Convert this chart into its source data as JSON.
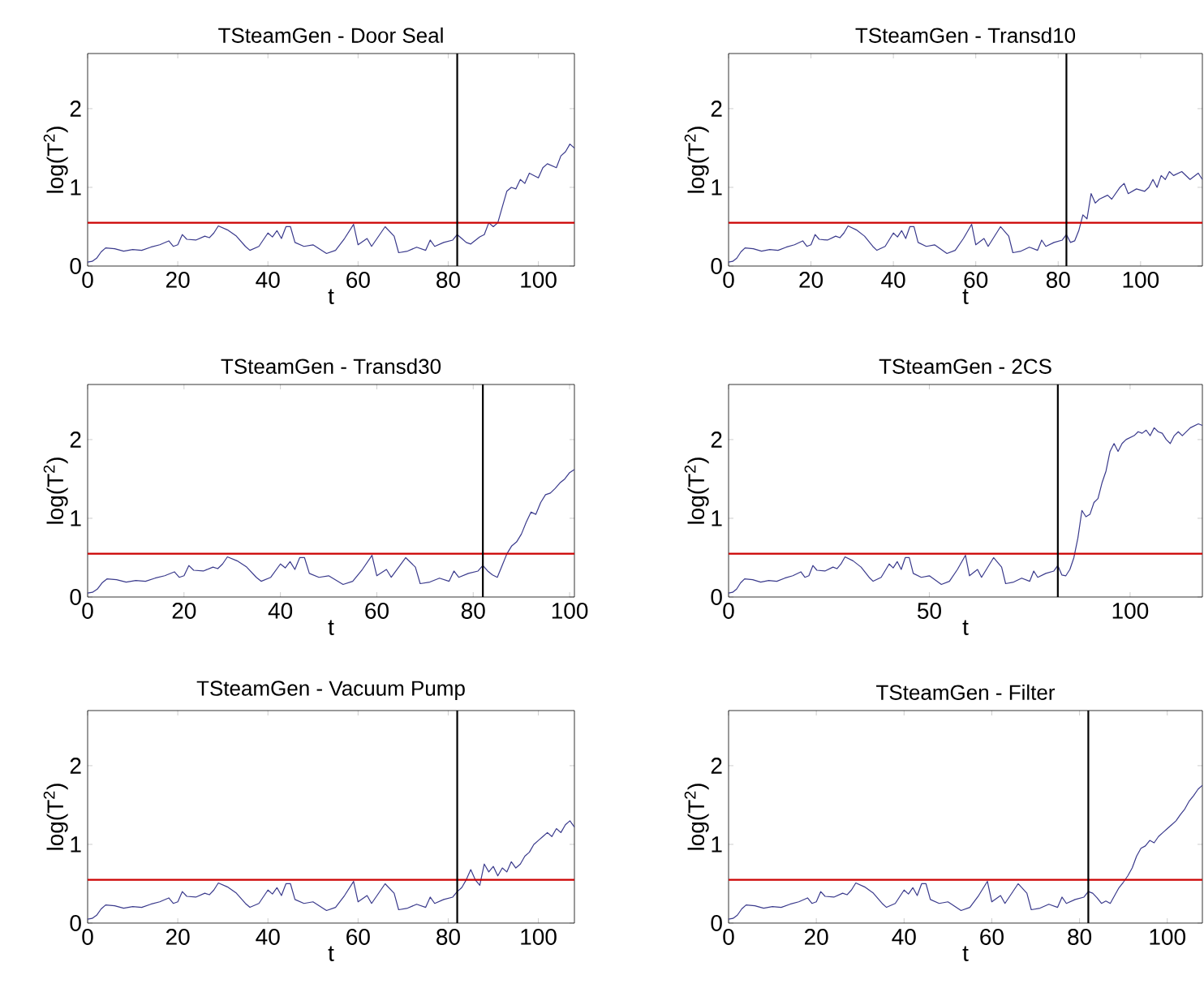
{
  "chart_data": [
    {
      "type": "line",
      "title": "TSteamGen - Door Seal",
      "xlabel": "t",
      "ylabel": "log(T$^{2}$)",
      "xlim": [
        0,
        108
      ],
      "ylim": [
        0,
        2.7
      ],
      "xticks": [
        0,
        20,
        40,
        60,
        80,
        100
      ],
      "yticks": [
        0,
        1,
        2
      ],
      "ref_lines": [
        {
          "axis": "y",
          "value": 0.55,
          "color": "#cc0000"
        },
        {
          "axis": "x",
          "value": 82,
          "color": "#000000"
        }
      ],
      "series": [
        {
          "color": "#3a3a8c",
          "x": [
            0,
            1,
            2,
            3,
            4,
            6,
            8,
            10,
            12,
            14,
            16,
            18,
            19,
            20,
            21,
            22,
            24,
            26,
            27,
            28,
            29,
            31,
            33,
            35,
            36,
            38,
            40,
            41,
            42,
            43,
            44,
            45,
            46,
            48,
            50,
            53,
            55,
            57,
            59,
            60,
            62,
            63,
            66,
            68,
            69,
            71,
            73,
            75,
            76,
            77,
            79,
            81,
            82,
            83,
            84,
            85,
            87,
            88,
            89,
            90,
            91,
            92,
            93,
            94,
            95,
            96,
            97,
            98,
            100,
            101,
            102,
            104,
            105,
            106,
            107,
            108
          ],
          "values": [
            0.05,
            0.06,
            0.1,
            0.18,
            0.23,
            0.22,
            0.19,
            0.21,
            0.2,
            0.24,
            0.27,
            0.32,
            0.25,
            0.27,
            0.4,
            0.34,
            0.33,
            0.38,
            0.36,
            0.42,
            0.51,
            0.46,
            0.38,
            0.25,
            0.2,
            0.25,
            0.42,
            0.37,
            0.45,
            0.35,
            0.5,
            0.5,
            0.3,
            0.25,
            0.27,
            0.16,
            0.2,
            0.35,
            0.53,
            0.27,
            0.35,
            0.25,
            0.5,
            0.38,
            0.17,
            0.19,
            0.24,
            0.2,
            0.33,
            0.25,
            0.3,
            0.33,
            0.4,
            0.35,
            0.3,
            0.28,
            0.37,
            0.4,
            0.55,
            0.5,
            0.55,
            0.75,
            0.95,
            1.0,
            0.98,
            1.1,
            1.05,
            1.18,
            1.12,
            1.25,
            1.3,
            1.25,
            1.4,
            1.45,
            1.55,
            1.5
          ]
        }
      ]
    },
    {
      "type": "line",
      "title": "TSteamGen - Transd10",
      "xlabel": "t",
      "ylabel": "log(T$^{2}$)",
      "xlim": [
        0,
        115
      ],
      "ylim": [
        0,
        2.7
      ],
      "xticks": [
        0,
        20,
        40,
        60,
        80,
        100
      ],
      "yticks": [
        0,
        1,
        2
      ],
      "ref_lines": [
        {
          "axis": "y",
          "value": 0.55,
          "color": "#cc0000"
        },
        {
          "axis": "x",
          "value": 82,
          "color": "#000000"
        }
      ],
      "series": [
        {
          "color": "#3a3a8c",
          "x": [
            0,
            1,
            2,
            3,
            4,
            6,
            8,
            10,
            12,
            14,
            16,
            18,
            19,
            20,
            21,
            22,
            24,
            26,
            27,
            28,
            29,
            31,
            33,
            35,
            36,
            38,
            40,
            41,
            42,
            43,
            44,
            45,
            46,
            48,
            50,
            53,
            55,
            57,
            59,
            60,
            62,
            63,
            66,
            68,
            69,
            71,
            73,
            75,
            76,
            77,
            79,
            81,
            82,
            83,
            84,
            85,
            86,
            87,
            88,
            89,
            90,
            92,
            93,
            95,
            96,
            97,
            99,
            101,
            102,
            103,
            104,
            105,
            106,
            107,
            108,
            110,
            112,
            114,
            115
          ],
          "values": [
            0.05,
            0.06,
            0.1,
            0.18,
            0.23,
            0.22,
            0.19,
            0.21,
            0.2,
            0.24,
            0.27,
            0.32,
            0.25,
            0.27,
            0.4,
            0.34,
            0.33,
            0.38,
            0.36,
            0.42,
            0.51,
            0.46,
            0.38,
            0.25,
            0.2,
            0.25,
            0.42,
            0.37,
            0.45,
            0.35,
            0.5,
            0.5,
            0.3,
            0.25,
            0.27,
            0.16,
            0.2,
            0.35,
            0.53,
            0.27,
            0.35,
            0.25,
            0.5,
            0.38,
            0.17,
            0.19,
            0.24,
            0.2,
            0.33,
            0.25,
            0.3,
            0.33,
            0.4,
            0.3,
            0.32,
            0.45,
            0.65,
            0.6,
            0.92,
            0.8,
            0.85,
            0.9,
            0.85,
            1.0,
            1.05,
            0.92,
            0.98,
            0.95,
            1.0,
            1.1,
            1.0,
            1.15,
            1.1,
            1.2,
            1.15,
            1.2,
            1.1,
            1.18,
            1.1
          ]
        }
      ]
    },
    {
      "type": "line",
      "title": "TSteamGen - Transd30",
      "xlabel": "t",
      "ylabel": "log(T$^{2}$)",
      "xlim": [
        0,
        101
      ],
      "ylim": [
        0,
        2.7
      ],
      "xticks": [
        0,
        20,
        40,
        60,
        80,
        100
      ],
      "yticks": [
        0,
        1,
        2
      ],
      "ref_lines": [
        {
          "axis": "y",
          "value": 0.55,
          "color": "#cc0000"
        },
        {
          "axis": "x",
          "value": 82,
          "color": "#000000"
        }
      ],
      "series": [
        {
          "color": "#3a3a8c",
          "x": [
            0,
            1,
            2,
            3,
            4,
            6,
            8,
            10,
            12,
            14,
            16,
            18,
            19,
            20,
            21,
            22,
            24,
            26,
            27,
            28,
            29,
            31,
            33,
            35,
            36,
            38,
            40,
            41,
            42,
            43,
            44,
            45,
            46,
            48,
            50,
            53,
            55,
            57,
            59,
            60,
            62,
            63,
            66,
            68,
            69,
            71,
            73,
            75,
            76,
            77,
            79,
            81,
            82,
            83,
            84,
            85,
            86,
            87,
            88,
            89,
            90,
            91,
            92,
            93,
            94,
            95,
            96,
            97,
            98,
            99,
            100,
            101
          ],
          "values": [
            0.05,
            0.06,
            0.1,
            0.18,
            0.23,
            0.22,
            0.19,
            0.21,
            0.2,
            0.24,
            0.27,
            0.32,
            0.25,
            0.27,
            0.4,
            0.34,
            0.33,
            0.38,
            0.36,
            0.42,
            0.51,
            0.46,
            0.38,
            0.25,
            0.2,
            0.25,
            0.42,
            0.37,
            0.45,
            0.35,
            0.5,
            0.5,
            0.3,
            0.25,
            0.27,
            0.16,
            0.2,
            0.35,
            0.53,
            0.27,
            0.35,
            0.25,
            0.5,
            0.38,
            0.17,
            0.19,
            0.24,
            0.2,
            0.33,
            0.25,
            0.3,
            0.33,
            0.4,
            0.33,
            0.28,
            0.25,
            0.4,
            0.55,
            0.65,
            0.7,
            0.8,
            0.95,
            1.08,
            1.05,
            1.2,
            1.3,
            1.32,
            1.38,
            1.45,
            1.5,
            1.58,
            1.62
          ]
        }
      ]
    },
    {
      "type": "line",
      "title": "TSteamGen - 2CS",
      "xlabel": "t",
      "ylabel": "log(T$^{2}$)",
      "xlim": [
        0,
        118
      ],
      "ylim": [
        0,
        2.7
      ],
      "xticks": [
        0,
        50,
        100
      ],
      "yticks": [
        0,
        1,
        2
      ],
      "ref_lines": [
        {
          "axis": "y",
          "value": 0.55,
          "color": "#cc0000"
        },
        {
          "axis": "x",
          "value": 82,
          "color": "#000000"
        }
      ],
      "series": [
        {
          "color": "#3a3a8c",
          "x": [
            0,
            1,
            2,
            3,
            4,
            6,
            8,
            10,
            12,
            14,
            16,
            18,
            19,
            20,
            21,
            22,
            24,
            26,
            27,
            28,
            29,
            31,
            33,
            35,
            36,
            38,
            40,
            41,
            42,
            43,
            44,
            45,
            46,
            48,
            50,
            53,
            55,
            57,
            59,
            60,
            62,
            63,
            66,
            68,
            69,
            71,
            73,
            75,
            76,
            77,
            79,
            81,
            82,
            83,
            84,
            85,
            86,
            87,
            88,
            89,
            90,
            91,
            92,
            93,
            94,
            95,
            96,
            97,
            98,
            99,
            101,
            102,
            103,
            104,
            105,
            106,
            107,
            108,
            109,
            110,
            111,
            112,
            113,
            115,
            117,
            118
          ],
          "values": [
            0.05,
            0.06,
            0.1,
            0.18,
            0.23,
            0.22,
            0.19,
            0.21,
            0.2,
            0.24,
            0.27,
            0.32,
            0.25,
            0.27,
            0.4,
            0.34,
            0.33,
            0.38,
            0.36,
            0.42,
            0.51,
            0.46,
            0.38,
            0.25,
            0.2,
            0.25,
            0.42,
            0.37,
            0.45,
            0.35,
            0.5,
            0.5,
            0.3,
            0.25,
            0.27,
            0.16,
            0.2,
            0.35,
            0.53,
            0.27,
            0.35,
            0.25,
            0.5,
            0.38,
            0.17,
            0.19,
            0.24,
            0.2,
            0.33,
            0.25,
            0.3,
            0.33,
            0.4,
            0.28,
            0.27,
            0.35,
            0.5,
            0.75,
            1.1,
            1.02,
            1.05,
            1.2,
            1.25,
            1.45,
            1.6,
            1.85,
            1.95,
            1.85,
            1.95,
            2.0,
            2.05,
            2.1,
            2.08,
            2.12,
            2.05,
            2.15,
            2.1,
            2.08,
            2.0,
            1.95,
            2.05,
            2.1,
            2.05,
            2.15,
            2.2,
            2.18
          ]
        }
      ]
    },
    {
      "type": "line",
      "title": "TSteamGen - Vacuum Pump",
      "xlabel": "t",
      "ylabel": "log(T$^{2}$)",
      "xlim": [
        0,
        108
      ],
      "ylim": [
        0,
        2.7
      ],
      "xticks": [
        0,
        20,
        40,
        60,
        80,
        100
      ],
      "yticks": [
        0,
        1,
        2
      ],
      "ref_lines": [
        {
          "axis": "y",
          "value": 0.55,
          "color": "#cc0000"
        },
        {
          "axis": "x",
          "value": 82,
          "color": "#000000"
        }
      ],
      "series": [
        {
          "color": "#3a3a8c",
          "x": [
            0,
            1,
            2,
            3,
            4,
            6,
            8,
            10,
            12,
            14,
            16,
            18,
            19,
            20,
            21,
            22,
            24,
            26,
            27,
            28,
            29,
            31,
            33,
            35,
            36,
            38,
            40,
            41,
            42,
            43,
            44,
            45,
            46,
            48,
            50,
            53,
            55,
            57,
            59,
            60,
            62,
            63,
            66,
            68,
            69,
            71,
            73,
            75,
            76,
            77,
            79,
            81,
            82,
            83,
            84,
            85,
            86,
            87,
            88,
            89,
            90,
            91,
            92,
            93,
            94,
            95,
            96,
            97,
            98,
            99,
            100,
            101,
            102,
            103,
            104,
            105,
            106,
            107,
            108
          ],
          "values": [
            0.05,
            0.06,
            0.1,
            0.18,
            0.23,
            0.22,
            0.19,
            0.21,
            0.2,
            0.24,
            0.27,
            0.32,
            0.25,
            0.27,
            0.4,
            0.34,
            0.33,
            0.38,
            0.36,
            0.42,
            0.51,
            0.46,
            0.38,
            0.25,
            0.2,
            0.25,
            0.42,
            0.37,
            0.45,
            0.35,
            0.5,
            0.5,
            0.3,
            0.25,
            0.27,
            0.16,
            0.2,
            0.35,
            0.53,
            0.27,
            0.35,
            0.25,
            0.5,
            0.38,
            0.17,
            0.19,
            0.24,
            0.2,
            0.33,
            0.25,
            0.3,
            0.33,
            0.4,
            0.45,
            0.55,
            0.68,
            0.55,
            0.48,
            0.75,
            0.65,
            0.72,
            0.6,
            0.7,
            0.65,
            0.78,
            0.7,
            0.75,
            0.85,
            0.9,
            1.0,
            1.05,
            1.1,
            1.15,
            1.1,
            1.2,
            1.15,
            1.25,
            1.3,
            1.22
          ]
        }
      ]
    },
    {
      "type": "line",
      "title": "TSteamGen - Filter",
      "xlabel": "t",
      "ylabel": "log(T$^{2}$)",
      "xlim": [
        0,
        108
      ],
      "ylim": [
        0,
        2.7
      ],
      "xticks": [
        0,
        20,
        40,
        60,
        80,
        100
      ],
      "yticks": [
        0,
        1,
        2
      ],
      "ref_lines": [
        {
          "axis": "y",
          "value": 0.55,
          "color": "#cc0000"
        },
        {
          "axis": "x",
          "value": 82,
          "color": "#000000"
        }
      ],
      "series": [
        {
          "color": "#3a3a8c",
          "x": [
            0,
            1,
            2,
            3,
            4,
            6,
            8,
            10,
            12,
            14,
            16,
            18,
            19,
            20,
            21,
            22,
            24,
            26,
            27,
            28,
            29,
            31,
            33,
            35,
            36,
            38,
            40,
            41,
            42,
            43,
            44,
            45,
            46,
            48,
            50,
            53,
            55,
            57,
            59,
            60,
            62,
            63,
            66,
            68,
            69,
            71,
            73,
            75,
            76,
            77,
            79,
            81,
            82,
            83,
            84,
            85,
            86,
            87,
            88,
            89,
            90,
            91,
            92,
            93,
            94,
            95,
            96,
            97,
            98,
            99,
            100,
            101,
            102,
            103,
            104,
            105,
            106,
            107,
            108
          ],
          "values": [
            0.05,
            0.06,
            0.1,
            0.18,
            0.23,
            0.22,
            0.19,
            0.21,
            0.2,
            0.24,
            0.27,
            0.32,
            0.25,
            0.27,
            0.4,
            0.34,
            0.33,
            0.38,
            0.36,
            0.42,
            0.51,
            0.46,
            0.38,
            0.25,
            0.2,
            0.25,
            0.42,
            0.37,
            0.45,
            0.35,
            0.5,
            0.5,
            0.3,
            0.25,
            0.27,
            0.16,
            0.2,
            0.35,
            0.53,
            0.27,
            0.35,
            0.25,
            0.5,
            0.38,
            0.17,
            0.19,
            0.24,
            0.2,
            0.33,
            0.25,
            0.3,
            0.33,
            0.4,
            0.38,
            0.32,
            0.25,
            0.28,
            0.25,
            0.35,
            0.45,
            0.52,
            0.6,
            0.7,
            0.85,
            0.95,
            0.98,
            1.05,
            1.02,
            1.1,
            1.15,
            1.2,
            1.25,
            1.3,
            1.38,
            1.45,
            1.55,
            1.62,
            1.7,
            1.75
          ]
        }
      ]
    }
  ]
}
